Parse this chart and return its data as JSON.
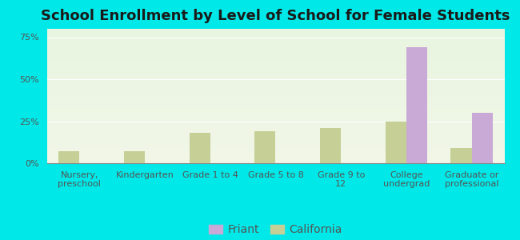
{
  "title": "School Enrollment by Level of School for Female Students",
  "categories": [
    "Nursery,\npreschool",
    "Kindergarten",
    "Grade 1 to 4",
    "Grade 5 to 8",
    "Grade 9 to\n12",
    "College\nundergrad",
    "Graduate or\nprofessional"
  ],
  "friant": [
    0,
    0,
    0,
    0,
    0,
    69,
    30
  ],
  "california": [
    7,
    7,
    18,
    19,
    21,
    25,
    9
  ],
  "friant_color": "#c9aad6",
  "california_color": "#c5cf96",
  "background_color": "#00e8e8",
  "grad_top": "#e8f5e0",
  "grad_bottom": "#f2f7e8",
  "ylim": [
    0,
    80
  ],
  "yticks": [
    0,
    25,
    50,
    75
  ],
  "ytick_labels": [
    "0%",
    "25%",
    "50%",
    "75%"
  ],
  "bar_width": 0.32,
  "title_fontsize": 13,
  "tick_fontsize": 8,
  "legend_fontsize": 10,
  "axis_color": "#888888",
  "text_color": "#555555"
}
